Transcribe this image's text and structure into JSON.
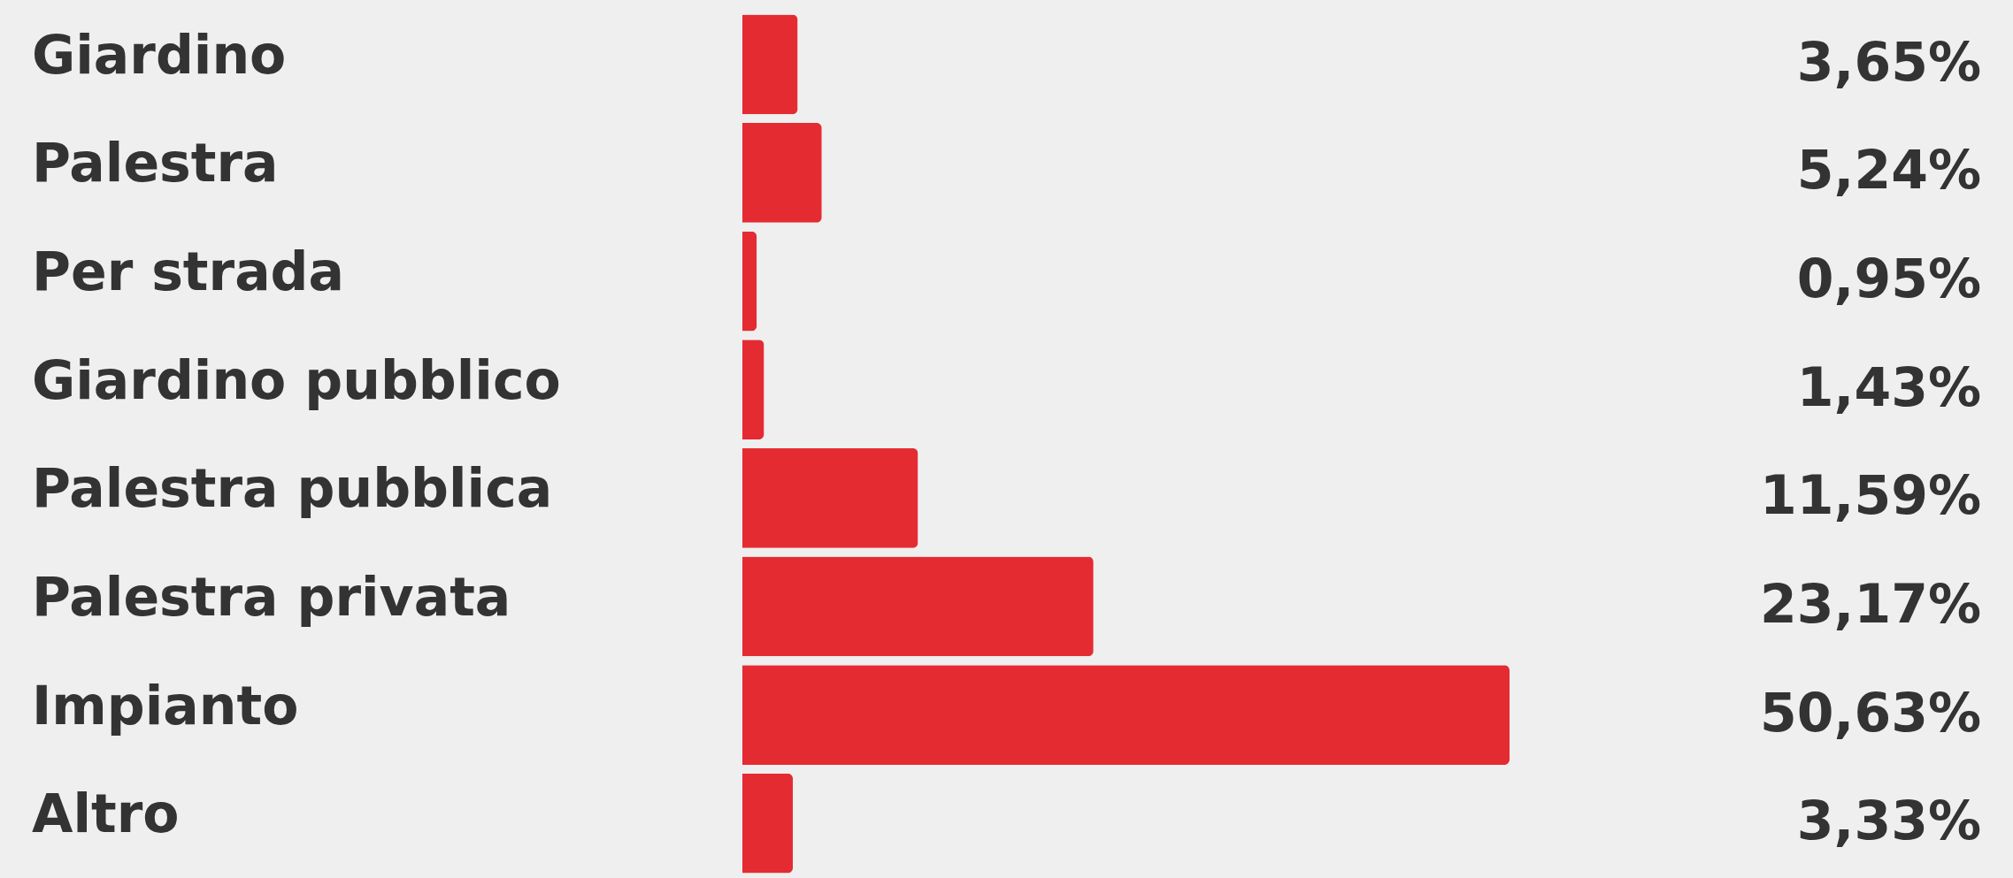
{
  "chart_data": {
    "type": "bar",
    "orientation": "horizontal",
    "categories": [
      "Giardino",
      "Palestra",
      "Per strada",
      "Giardino pubblico",
      "Palestra pubblica",
      "Palestra privata",
      "Impianto",
      "Altro"
    ],
    "values": [
      3.65,
      5.24,
      0.95,
      1.43,
      11.59,
      23.17,
      50.63,
      3.33
    ],
    "value_labels": [
      "3,65%",
      "5,24%",
      "0,95%",
      "1,43%",
      "11,59%",
      "23,17%",
      "50,63%",
      "3,33%"
    ],
    "color": "#e52b32"
  }
}
